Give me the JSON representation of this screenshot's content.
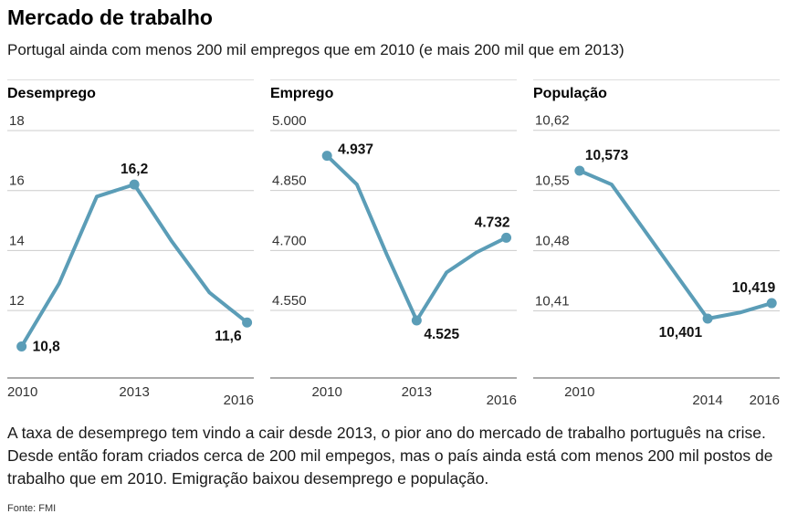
{
  "header": {
    "title": "Mercado de trabalho",
    "subtitle": "Portugal ainda com menos 200 mil empregos que em 2010 (e mais 200 mil que em 2013)"
  },
  "colors": {
    "accent": "#5b9db7",
    "grid": "#cccccc",
    "axis": "#8f8f8f",
    "text": "#1a1a1a"
  },
  "chart_data": [
    {
      "type": "line",
      "title": "Desemprego",
      "x": [
        2010,
        2011,
        2012,
        2013,
        2014,
        2015,
        2016
      ],
      "values": [
        10.8,
        12.9,
        15.8,
        16.2,
        14.3,
        12.6,
        11.6
      ],
      "xlim": [
        2009.62,
        2016.18
      ],
      "ylim": [
        9.75,
        18.64
      ],
      "grid": true,
      "legend": "none",
      "yticks": [
        {
          "value": 12,
          "label": "12"
        },
        {
          "value": 14,
          "label": "14"
        },
        {
          "value": 16,
          "label": "16"
        },
        {
          "value": 18,
          "label": "18"
        }
      ],
      "xticks": [
        {
          "value": 2010,
          "label": "2010",
          "row": 0
        },
        {
          "value": 2013,
          "label": "2013",
          "row": 0
        },
        {
          "value": 2016,
          "label": "2016",
          "row": 1
        }
      ],
      "markers": [
        {
          "x": 2010,
          "label": "10,8",
          "pos": "right"
        },
        {
          "x": 2013,
          "label": "16,2",
          "pos": "top"
        },
        {
          "x": 2016,
          "label": "11,6",
          "pos": "bottom-left"
        }
      ]
    },
    {
      "type": "line",
      "title": "Emprego",
      "x": [
        2010,
        2011,
        2012,
        2013,
        2014,
        2015,
        2016
      ],
      "values": [
        4937,
        4865,
        4690,
        4525,
        4645,
        4695,
        4732
      ],
      "xlim": [
        2008.1,
        2016.35
      ],
      "ylim": [
        4381,
        5048
      ],
      "grid": true,
      "legend": "none",
      "yticks": [
        {
          "value": 4550,
          "label": "4.550"
        },
        {
          "value": 4700,
          "label": "4.700"
        },
        {
          "value": 4850,
          "label": "4.850"
        },
        {
          "value": 5000,
          "label": "5.000"
        }
      ],
      "xticks": [
        {
          "value": 2010,
          "label": "2010",
          "row": 0
        },
        {
          "value": 2013,
          "label": "2013",
          "row": 0
        },
        {
          "value": 2016,
          "label": "2016",
          "row": 1
        }
      ],
      "markers": [
        {
          "x": 2010,
          "label": "4.937",
          "pos": "right-up"
        },
        {
          "x": 2013,
          "label": "4.525",
          "pos": "bottom-right"
        },
        {
          "x": 2016,
          "label": "4.732",
          "pos": "top-left"
        }
      ]
    },
    {
      "type": "line",
      "title": "População",
      "x": [
        2010,
        2011,
        2012,
        2013,
        2014,
        2015,
        2016
      ],
      "values": [
        10.573,
        10.557,
        10.505,
        10.453,
        10.401,
        10.408,
        10.419
      ],
      "xlim": [
        2008.55,
        2016.25
      ],
      "ylim": [
        10.332,
        10.642
      ],
      "grid": true,
      "legend": "none",
      "yticks": [
        {
          "value": 10.41,
          "label": "10,41"
        },
        {
          "value": 10.48,
          "label": "10,48"
        },
        {
          "value": 10.55,
          "label": "10,55"
        },
        {
          "value": 10.62,
          "label": "10,62"
        }
      ],
      "xticks": [
        {
          "value": 2010,
          "label": "2010",
          "row": 0
        },
        {
          "value": 2014,
          "label": "2014",
          "row": 1
        },
        {
          "value": 2016,
          "label": "2016",
          "row": 1
        }
      ],
      "markers": [
        {
          "x": 2010,
          "label": "10,573",
          "pos": "top-right"
        },
        {
          "x": 2014,
          "label": "10,401",
          "pos": "bottom-left"
        },
        {
          "x": 2016,
          "label": "10,419",
          "pos": "top-left"
        }
      ]
    }
  ],
  "footer": {
    "text": "A taxa de desemprego tem vindo a cair desde 2013, o pior ano do mercado de trabalho português na crise. Desde então foram criados cerca de 200 mil empegos, mas o país ainda está com menos 200 mil postos de trabalho que em 2010. Emigração baixou desemprego e população.",
    "source": "Fonte: FMI"
  }
}
